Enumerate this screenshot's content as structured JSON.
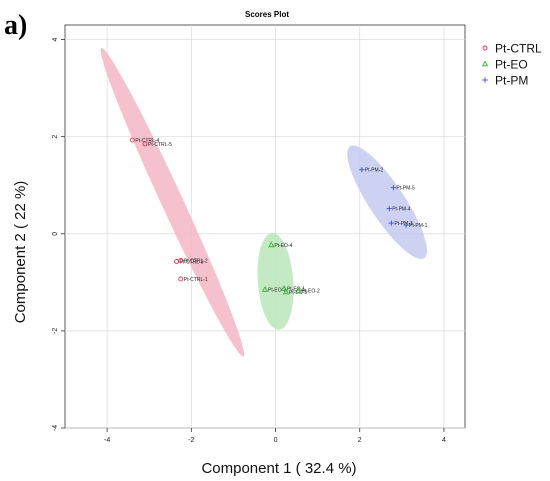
{
  "panel_label": "a)",
  "chart_data": {
    "type": "scatter",
    "title": "Scores Plot",
    "xlabel": "Component 1 ( 32.4 %)",
    "ylabel": "Component 2 ( 22 %)",
    "xlim": [
      -5,
      4.5
    ],
    "ylim": [
      -4,
      4.3
    ],
    "xticks": [
      -4,
      -2,
      0,
      2,
      4
    ],
    "yticks": [
      -4,
      -2,
      0,
      2,
      4
    ],
    "grid": true,
    "legend_position": "top-right",
    "series": [
      {
        "name": "Pt-CTRL",
        "marker": "circle",
        "color": "#E8294A",
        "ellipse_color": "#F4B6C6",
        "points": [
          {
            "label": "Pt-CTRL-4",
            "x": -3.4,
            "y": 1.93
          },
          {
            "label": "Pt-CTRL-5",
            "x": -3.1,
            "y": 1.85
          },
          {
            "label": "Pt-CTRL-3",
            "x": -2.35,
            "y": -0.57
          },
          {
            "label": "Pt-CTRL-2",
            "x": -2.25,
            "y": -0.55
          },
          {
            "label": "Pt-CTRL-1",
            "x": -2.25,
            "y": -0.93
          }
        ],
        "ellipse": {
          "cx": -2.45,
          "cy": 0.65,
          "rx": 3.6,
          "ry": 0.25,
          "angle_deg": -62
        }
      },
      {
        "name": "Pt-EO",
        "marker": "triangle",
        "color": "#2DBE2D",
        "ellipse_color": "#B8E6B8",
        "points": [
          {
            "label": "Pt-EO-4",
            "x": -0.1,
            "y": -0.23
          },
          {
            "label": "Pt-EO-3",
            "x": -0.25,
            "y": -1.15
          },
          {
            "label": "Pt-EO-1",
            "x": 0.2,
            "y": -1.13
          },
          {
            "label": "Pt-EO-5",
            "x": 0.25,
            "y": -1.2
          },
          {
            "label": "Pt-EO-2",
            "x": 0.55,
            "y": -1.17
          }
        ],
        "ellipse": {
          "cx": 0.0,
          "cy": -0.98,
          "rx": 1.0,
          "ry": 0.42,
          "angle_deg": -85
        }
      },
      {
        "name": "Pt-PM",
        "marker": "plus",
        "color": "#3D4FD6",
        "ellipse_color": "#C4C9F0",
        "points": [
          {
            "label": "Pt-PM-2",
            "x": 2.05,
            "y": 1.32
          },
          {
            "label": "Pt-PM-5",
            "x": 2.8,
            "y": 0.95
          },
          {
            "label": "Pt-PM-4",
            "x": 2.7,
            "y": 0.52
          },
          {
            "label": "Pt-PM-3",
            "x": 2.75,
            "y": 0.22
          },
          {
            "label": "Pt-PM-1",
            "x": 3.1,
            "y": 0.18
          }
        ],
        "ellipse": {
          "cx": 2.65,
          "cy": 0.65,
          "rx": 1.45,
          "ry": 0.4,
          "angle_deg": -52
        }
      }
    ]
  }
}
